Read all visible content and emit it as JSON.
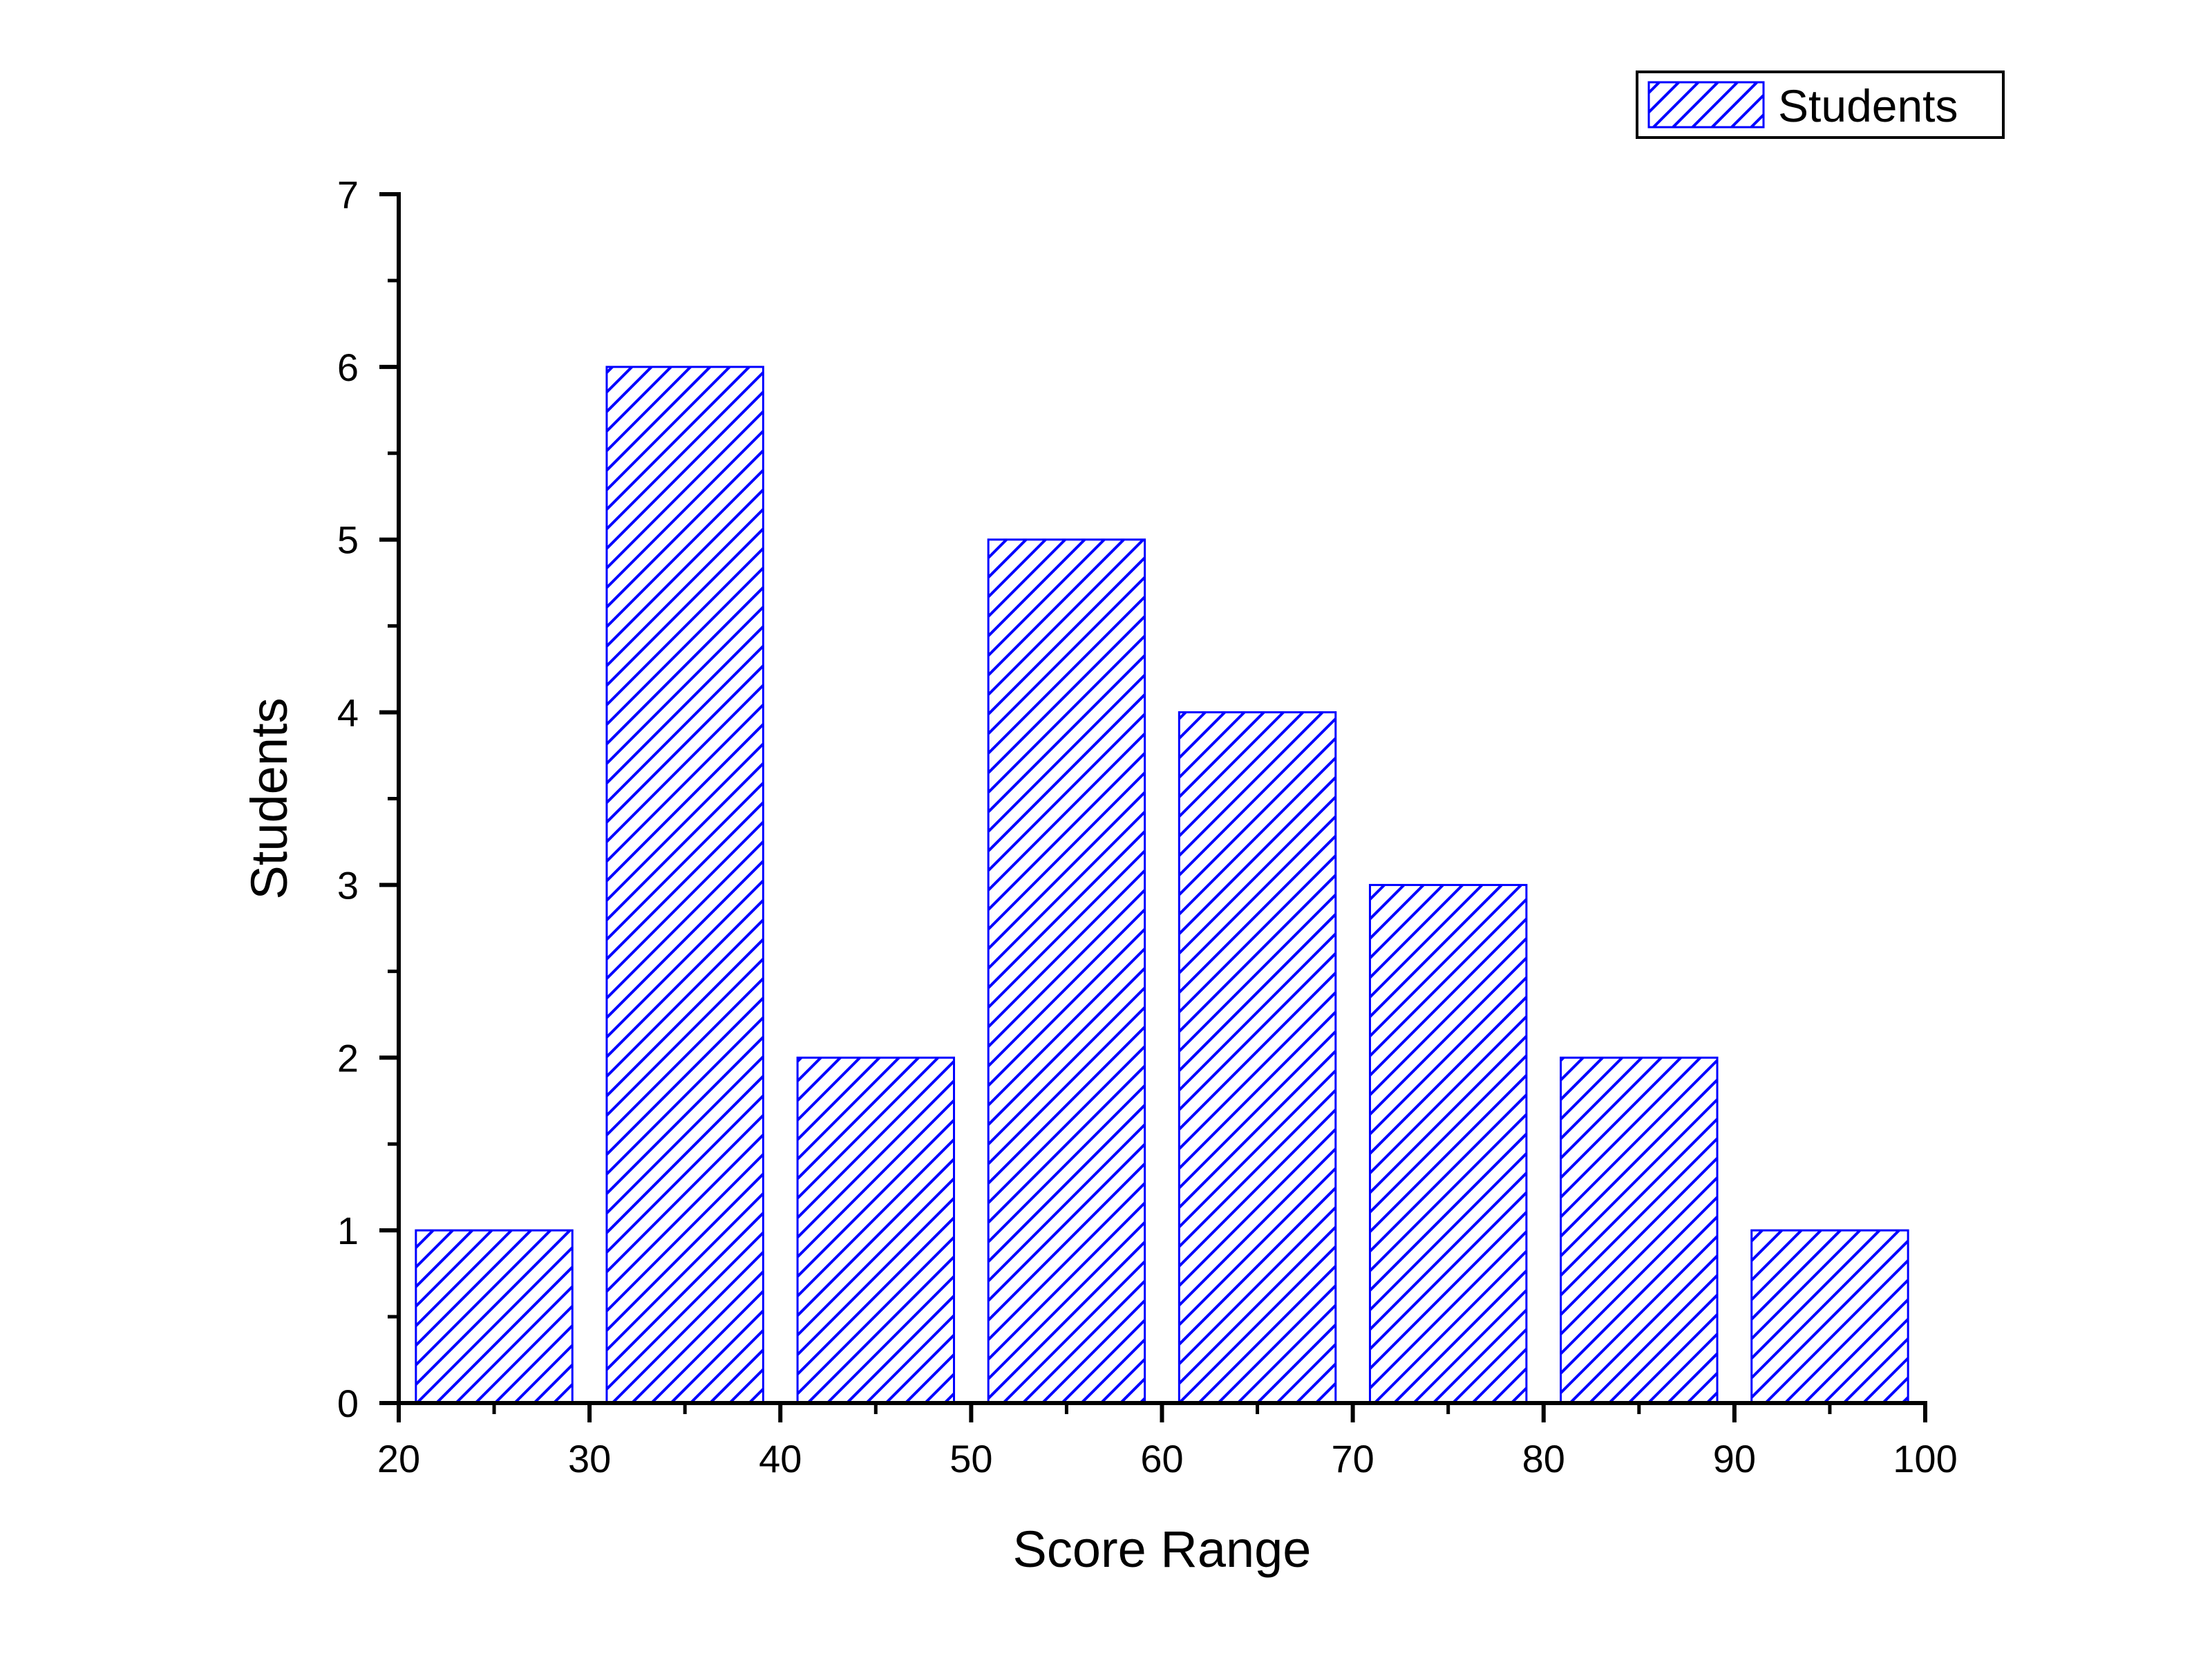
{
  "chart_data": {
    "type": "bar",
    "title": "",
    "xlabel": "Score Range",
    "ylabel": "Students",
    "xlim": [
      20,
      100
    ],
    "ylim": [
      0,
      7
    ],
    "x_ticks": [
      "20",
      "30",
      "40",
      "50",
      "60",
      "70",
      "80",
      "90",
      "100"
    ],
    "y_ticks": [
      "0",
      "1",
      "2",
      "3",
      "4",
      "5",
      "6",
      "7"
    ],
    "bins": [
      {
        "start": 20,
        "end": 30,
        "value": 1
      },
      {
        "start": 30,
        "end": 40,
        "value": 6
      },
      {
        "start": 40,
        "end": 50,
        "value": 2
      },
      {
        "start": 50,
        "end": 60,
        "value": 5
      },
      {
        "start": 60,
        "end": 70,
        "value": 4
      },
      {
        "start": 70,
        "end": 80,
        "value": 3
      },
      {
        "start": 80,
        "end": 90,
        "value": 2
      },
      {
        "start": 90,
        "end": 100,
        "value": 1
      }
    ],
    "series": [
      {
        "name": "Students",
        "values": [
          1,
          6,
          2,
          5,
          4,
          3,
          2,
          1
        ]
      }
    ],
    "fill": "diagonal-hatch",
    "bar_color": "#0000ff",
    "legend": {
      "position": "top-right",
      "label": "Students"
    },
    "grid": false
  }
}
